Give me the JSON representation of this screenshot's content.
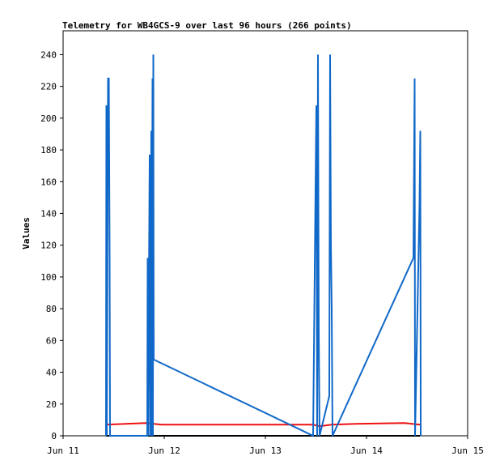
{
  "chart_data": {
    "type": "line",
    "title": "Telemetry for WB4GCS-9 over last 96 hours (266 points)",
    "y_label": "Values",
    "xlim": [
      11,
      15
    ],
    "xticks": [
      {
        "value": 11,
        "label": "Jun 11"
      },
      {
        "value": 12,
        "label": "Jun 12"
      },
      {
        "value": 13,
        "label": "Jun 13"
      },
      {
        "value": 14,
        "label": "Jun 14"
      },
      {
        "value": 15,
        "label": "Jun 15"
      }
    ],
    "ylim": [
      0,
      255
    ],
    "yticks": [
      0,
      20,
      40,
      60,
      80,
      100,
      120,
      140,
      160,
      180,
      200,
      220,
      240
    ],
    "grid": false,
    "series": [
      {
        "color": "#1068c8",
        "x": [
          11.424,
          11.428,
          11.432,
          11.444,
          11.452,
          11.46,
          11.464,
          11.832,
          11.836,
          11.84,
          11.856,
          11.86,
          11.872,
          11.876,
          11.884,
          11.888,
          11.892,
          11.896,
          13.472,
          13.504,
          13.512,
          13.52,
          13.528,
          13.536,
          13.632,
          13.64,
          13.648,
          13.656,
          13.664,
          14.464,
          14.476,
          14.48,
          14.524,
          14.532,
          14.536
        ],
        "values": [
          0,
          208,
          0,
          225,
          225,
          112,
          0,
          0,
          112,
          0,
          177,
          0,
          192,
          0,
          225,
          0,
          240,
          48,
          0,
          208,
          0,
          240,
          64,
          0,
          25,
          240,
          120,
          80,
          0,
          112,
          225,
          0,
          145,
          192,
          0
        ]
      },
      {
        "color": "#ee1111",
        "x": [
          11.424,
          11.816,
          11.976,
          13.472,
          13.536,
          13.656,
          13.896,
          14.376,
          14.528
        ],
        "values": [
          7,
          8,
          7,
          7,
          6,
          7,
          7.5,
          8,
          7
        ]
      },
      {
        "color": "#000000",
        "x": [
          11.424,
          14.528
        ],
        "values": [
          0,
          0
        ]
      }
    ]
  }
}
